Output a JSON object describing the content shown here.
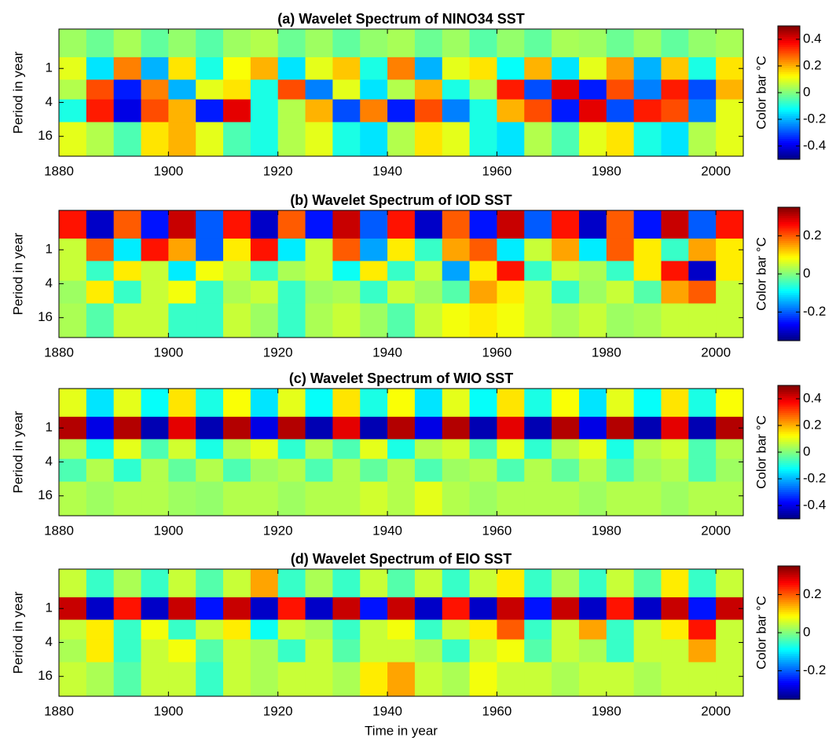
{
  "chart_data": [
    {
      "type": "heatmap",
      "title": "(a) Wavelet Spectrum of NINO34 SST",
      "ylabel": "Period in year",
      "colorbar_label": "Color bar °C",
      "colormap": "jet",
      "ylog": true,
      "yreversed": true,
      "x": [
        1882.5,
        1887.5,
        1892.5,
        1897.5,
        1902.5,
        1907.5,
        1912.5,
        1917.5,
        1922.5,
        1927.5,
        1932.5,
        1937.5,
        1942.5,
        1947.5,
        1952.5,
        1957.5,
        1962.5,
        1967.5,
        1972.5,
        1977.5,
        1982.5,
        1987.5,
        1992.5,
        1997.5,
        2002.5
      ],
      "y": [
        0.4,
        1,
        2.5,
        5,
        16
      ],
      "z": [
        [
          0.03,
          -0.02,
          0.04,
          -0.03,
          0.02,
          -0.04,
          0.03,
          0.05,
          -0.02,
          0.03,
          -0.03,
          0.02,
          0.04,
          -0.02,
          0.03,
          -0.04,
          0.02,
          -0.03,
          0.04,
          0.03,
          -0.02,
          0.03,
          -0.03,
          0.02,
          0.04
        ],
        [
          0.1,
          -0.15,
          0.25,
          -0.2,
          0.15,
          -0.1,
          0.12,
          0.2,
          -0.15,
          0.1,
          0.18,
          -0.1,
          0.25,
          -0.2,
          0.1,
          0.15,
          -0.12,
          0.2,
          -0.15,
          0.1,
          0.22,
          -0.2,
          0.18,
          -0.1,
          0.15
        ],
        [
          0.05,
          0.3,
          -0.35,
          0.25,
          -0.2,
          0.1,
          0.15,
          -0.1,
          0.3,
          -0.25,
          0.1,
          -0.15,
          0.05,
          0.2,
          -0.1,
          0.05,
          0.35,
          -0.3,
          0.4,
          -0.35,
          0.3,
          -0.25,
          0.35,
          -0.3,
          0.2
        ],
        [
          -0.1,
          0.35,
          -0.4,
          0.3,
          0.2,
          -0.35,
          0.4,
          -0.1,
          0.05,
          0.2,
          -0.3,
          0.25,
          -0.35,
          0.3,
          -0.25,
          -0.1,
          0.2,
          0.3,
          -0.35,
          0.4,
          -0.3,
          0.35,
          0.3,
          -0.25,
          0.1
        ],
        [
          0.1,
          0.05,
          -0.05,
          0.15,
          0.2,
          0.1,
          -0.05,
          -0.1,
          0.05,
          0.1,
          -0.1,
          -0.15,
          0.05,
          0.15,
          0.1,
          -0.1,
          -0.15,
          0.05,
          -0.05,
          0.1,
          0.15,
          -0.1,
          -0.15,
          0.05,
          0.1
        ]
      ],
      "xlim": [
        1880,
        2005
      ],
      "xticks": [
        1880,
        1900,
        1920,
        1940,
        1960,
        1980,
        2000
      ],
      "ylim": [
        0.2,
        36
      ],
      "yticks": [
        1,
        4,
        16
      ],
      "clim": [
        -0.5,
        0.5
      ],
      "cticks": [
        -0.4,
        -0.2,
        0,
        0.2,
        0.4
      ]
    },
    {
      "type": "heatmap",
      "title": "(b) Wavelet Spectrum of IOD SST",
      "ylabel": "Period in year",
      "colorbar_label": "Color bar °C",
      "colormap": "jet",
      "ylog": true,
      "yreversed": true,
      "x": [
        1882.5,
        1887.5,
        1892.5,
        1897.5,
        1902.5,
        1907.5,
        1912.5,
        1917.5,
        1922.5,
        1927.5,
        1932.5,
        1937.5,
        1942.5,
        1947.5,
        1952.5,
        1957.5,
        1962.5,
        1967.5,
        1972.5,
        1977.5,
        1982.5,
        1987.5,
        1992.5,
        1997.5,
        2002.5
      ],
      "y": [
        0.4,
        1,
        2.5,
        5,
        16
      ],
      "z": [
        [
          0.25,
          -0.3,
          0.2,
          -0.25,
          0.3,
          -0.2,
          0.25,
          -0.3,
          0.2,
          -0.25,
          0.3,
          -0.2,
          0.25,
          -0.3,
          0.2,
          -0.25,
          0.3,
          -0.2,
          0.25,
          -0.3,
          0.2,
          -0.25,
          0.3,
          -0.2,
          0.25
        ],
        [
          0.05,
          0.2,
          -0.1,
          0.25,
          0.15,
          -0.2,
          0.1,
          0.25,
          -0.1,
          0.05,
          0.2,
          -0.15,
          0.1,
          -0.05,
          0.15,
          0.2,
          -0.1,
          0.05,
          0.15,
          -0.1,
          0.2,
          0.1,
          -0.05,
          0.15,
          0.1
        ],
        [
          0.05,
          -0.05,
          0.1,
          0.05,
          -0.1,
          0.08,
          0.05,
          -0.05,
          0.03,
          0.05,
          -0.08,
          0.1,
          -0.05,
          0.05,
          -0.15,
          0.1,
          0.25,
          -0.05,
          0.05,
          0.03,
          -0.05,
          0.1,
          0.25,
          -0.3,
          0.1
        ],
        [
          0.02,
          0.1,
          -0.05,
          0.05,
          0.08,
          -0.05,
          0.03,
          0.05,
          -0.05,
          0.02,
          0.03,
          -0.05,
          0.05,
          0.02,
          -0.03,
          0.15,
          0.1,
          0.05,
          -0.05,
          0.02,
          0.05,
          -0.03,
          0.15,
          0.2,
          0.05
        ],
        [
          0.03,
          -0.03,
          0.05,
          0.05,
          -0.05,
          -0.05,
          0.05,
          0.02,
          -0.05,
          0.03,
          0.05,
          0.02,
          -0.03,
          0.05,
          0.08,
          0.1,
          0.08,
          0.05,
          0.03,
          0.05,
          0.02,
          0.03,
          0.05,
          0.05,
          0.05
        ]
      ],
      "xlim": [
        1880,
        2005
      ],
      "xticks": [
        1880,
        1900,
        1920,
        1940,
        1960,
        1980,
        2000
      ],
      "ylim": [
        0.2,
        36
      ],
      "yticks": [
        1,
        4,
        16
      ],
      "clim": [
        -0.35,
        0.35
      ],
      "cticks": [
        -0.2,
        0,
        0.2
      ]
    },
    {
      "type": "heatmap",
      "title": "(c) Wavelet Spectrum of WIO SST",
      "ylabel": "Period in year",
      "colorbar_label": "Color bar °C",
      "colormap": "jet",
      "ylog": true,
      "yreversed": true,
      "x": [
        1882.5,
        1887.5,
        1892.5,
        1897.5,
        1902.5,
        1907.5,
        1912.5,
        1917.5,
        1922.5,
        1927.5,
        1932.5,
        1937.5,
        1942.5,
        1947.5,
        1952.5,
        1957.5,
        1962.5,
        1967.5,
        1972.5,
        1977.5,
        1982.5,
        1987.5,
        1992.5,
        1997.5,
        2002.5
      ],
      "y": [
        0.4,
        1,
        2.5,
        5,
        16
      ],
      "z": [
        [
          0.1,
          -0.15,
          0.1,
          -0.12,
          0.15,
          -0.1,
          0.12,
          -0.15,
          0.1,
          -0.12,
          0.15,
          -0.1,
          0.12,
          -0.15,
          0.1,
          -0.12,
          0.15,
          -0.1,
          0.12,
          -0.15,
          0.1,
          -0.12,
          0.15,
          -0.1,
          0.12
        ],
        [
          0.45,
          -0.4,
          0.45,
          -0.45,
          0.4,
          -0.45,
          0.45,
          -0.4,
          0.45,
          -0.45,
          0.4,
          -0.45,
          0.45,
          -0.4,
          0.45,
          -0.45,
          0.4,
          -0.45,
          0.45,
          -0.4,
          0.45,
          -0.45,
          0.4,
          -0.45,
          0.45
        ],
        [
          0.05,
          -0.1,
          0.1,
          -0.05,
          0.08,
          -0.1,
          0.05,
          0.1,
          -0.08,
          0.05,
          -0.05,
          0.1,
          -0.1,
          0.05,
          0.08,
          -0.05,
          0.1,
          -0.08,
          0.05,
          0.1,
          -0.1,
          0.05,
          0.08,
          -0.05,
          0.05
        ],
        [
          -0.05,
          0.05,
          -0.08,
          0.05,
          -0.03,
          0.05,
          -0.05,
          0.03,
          0.05,
          -0.05,
          0.05,
          -0.03,
          0.05,
          -0.05,
          0.03,
          0.05,
          -0.05,
          0.05,
          -0.03,
          0.05,
          -0.05,
          0.03,
          0.05,
          -0.05,
          0.03
        ],
        [
          0.05,
          0.03,
          0.05,
          0.05,
          0.03,
          0.02,
          0.05,
          0.05,
          0.03,
          0.05,
          0.05,
          0.08,
          0.05,
          0.1,
          0.05,
          0.03,
          0.05,
          0.05,
          0.05,
          0.03,
          0.05,
          0.05,
          0.03,
          0.05,
          0.05
        ]
      ],
      "xlim": [
        1880,
        2005
      ],
      "xticks": [
        1880,
        1900,
        1920,
        1940,
        1960,
        1980,
        2000
      ],
      "ylim": [
        0.2,
        36
      ],
      "yticks": [
        1,
        4,
        16
      ],
      "clim": [
        -0.5,
        0.5
      ],
      "cticks": [
        -0.4,
        -0.2,
        0,
        0.2,
        0.4
      ]
    },
    {
      "type": "heatmap",
      "title": "(d) Wavelet Spectrum of EIO SST",
      "ylabel": "Period in year",
      "xlabel": "Time in year",
      "colorbar_label": "Color bar °C",
      "colormap": "jet",
      "ylog": true,
      "yreversed": true,
      "x": [
        1882.5,
        1887.5,
        1892.5,
        1897.5,
        1902.5,
        1907.5,
        1912.5,
        1917.5,
        1922.5,
        1927.5,
        1932.5,
        1937.5,
        1942.5,
        1947.5,
        1952.5,
        1957.5,
        1962.5,
        1967.5,
        1972.5,
        1977.5,
        1982.5,
        1987.5,
        1992.5,
        1997.5,
        2002.5
      ],
      "y": [
        0.4,
        1,
        2.5,
        5,
        16
      ],
      "z": [
        [
          0.05,
          -0.05,
          0.03,
          -0.05,
          0.05,
          -0.03,
          0.05,
          0.15,
          -0.05,
          0.03,
          -0.05,
          0.05,
          -0.03,
          0.05,
          -0.05,
          0.05,
          0.1,
          -0.05,
          0.03,
          -0.05,
          0.05,
          -0.03,
          0.1,
          -0.05,
          0.05
        ],
        [
          0.3,
          -0.3,
          0.25,
          -0.3,
          0.3,
          -0.25,
          0.3,
          -0.3,
          0.25,
          -0.3,
          0.3,
          -0.25,
          0.3,
          -0.3,
          0.25,
          -0.3,
          0.3,
          -0.25,
          0.3,
          -0.3,
          0.25,
          -0.3,
          0.3,
          -0.25,
          0.3
        ],
        [
          0.05,
          0.1,
          -0.05,
          0.08,
          -0.05,
          0.05,
          0.1,
          -0.08,
          0.05,
          0.03,
          -0.05,
          0.05,
          0.08,
          -0.05,
          0.05,
          0.1,
          0.2,
          -0.05,
          0.05,
          0.15,
          -0.05,
          0.05,
          0.1,
          0.25,
          0.05
        ],
        [
          0.03,
          0.1,
          -0.05,
          0.05,
          0.08,
          -0.03,
          0.05,
          0.03,
          -0.05,
          0.05,
          -0.03,
          0.05,
          0.05,
          0.03,
          -0.05,
          0.05,
          0.08,
          -0.03,
          0.05,
          0.03,
          -0.05,
          0.05,
          0.05,
          0.15,
          0.05
        ],
        [
          0.05,
          0.03,
          -0.03,
          0.05,
          0.05,
          -0.05,
          0.05,
          0.03,
          0.05,
          0.05,
          0.03,
          0.1,
          0.15,
          0.05,
          0.03,
          0.08,
          0.05,
          0.05,
          0.03,
          0.05,
          0.05,
          0.03,
          0.05,
          0.05,
          0.05
        ]
      ],
      "xlim": [
        1880,
        2005
      ],
      "xticks": [
        1880,
        1900,
        1920,
        1940,
        1960,
        1980,
        2000
      ],
      "ylim": [
        0.2,
        36
      ],
      "yticks": [
        1,
        4,
        16
      ],
      "clim": [
        -0.35,
        0.35
      ],
      "cticks": [
        -0.2,
        0,
        0.2
      ]
    }
  ]
}
